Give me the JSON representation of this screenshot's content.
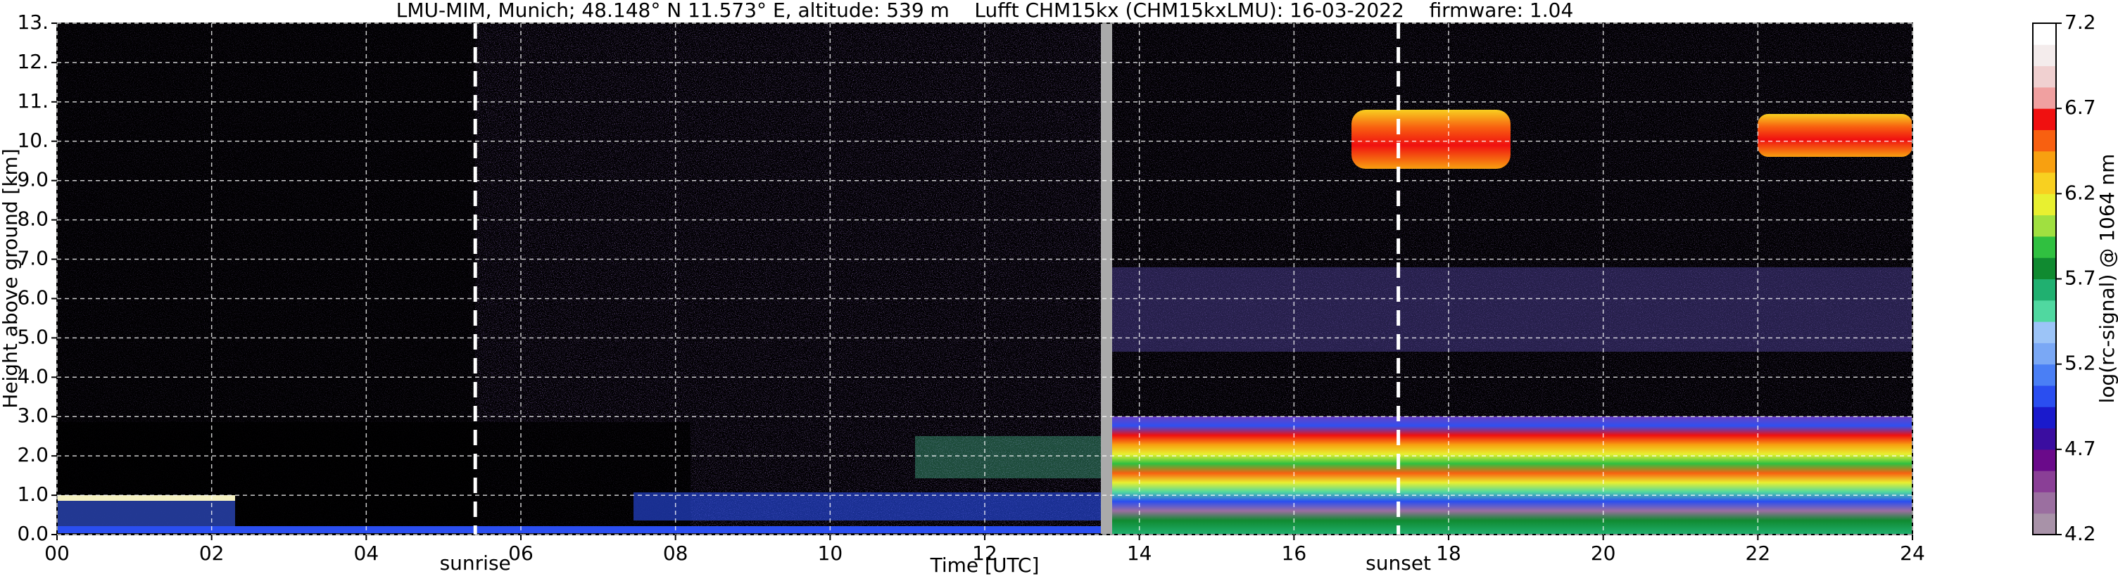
{
  "chart_data": {
    "type": "heatmap",
    "title": "LMU-MIM, Munich; 48.148° N 11.573° E, altitude: 539 m    Lufft CHM15kx (CHM15kxLMU): 16-03-2022    firmware: 1.04",
    "x_label": "Time [UTC]",
    "y_label": "Height above ground [km]",
    "xlim": [
      0,
      24
    ],
    "xticks": [
      {
        "value": 0,
        "label": "00"
      },
      {
        "value": 2,
        "label": "02"
      },
      {
        "value": 4,
        "label": "04"
      },
      {
        "value": 6,
        "label": "06"
      },
      {
        "value": 8,
        "label": "08"
      },
      10,
      12,
      14,
      16,
      18,
      20,
      22,
      24
    ],
    "ylim": [
      0,
      13
    ],
    "yticks": [
      {
        "value": 0,
        "label": "0.0"
      },
      {
        "value": 1,
        "label": "1.0"
      },
      {
        "value": 2,
        "label": "2.0"
      },
      {
        "value": 3,
        "label": "3.0"
      },
      {
        "value": 4,
        "label": "4.0"
      },
      {
        "value": 5,
        "label": "5.0"
      },
      {
        "value": 6,
        "label": "6.0"
      },
      {
        "value": 7,
        "label": "7.0"
      },
      {
        "value": 8,
        "label": "8.0"
      },
      {
        "value": 9,
        "label": "9.0"
      },
      {
        "value": 10,
        "label": "10."
      },
      {
        "value": 11,
        "label": "11."
      },
      {
        "value": 12,
        "label": "12."
      },
      {
        "value": 13,
        "label": "13."
      }
    ],
    "grid": true,
    "annotations": [
      {
        "label": "sunrise",
        "x": 5.41
      },
      {
        "label": "sunset",
        "x": 17.35
      }
    ],
    "colorbar": {
      "label": "log(rc-signal) @ 1064 nm",
      "lim": [
        4.2,
        7.2
      ],
      "ticks": [
        4.2,
        4.7,
        5.2,
        5.7,
        6.2,
        6.7,
        7.2
      ],
      "colormap": [
        "#a892a8",
        "#9b6fa0",
        "#8a3f96",
        "#6a0a8a",
        "#3a0da0",
        "#1a1acc",
        "#2a4ef0",
        "#4a7ff5",
        "#7aa8f5",
        "#9cc4f7",
        "#50d8a0",
        "#20b070",
        "#108a30",
        "#30c040",
        "#a0e040",
        "#e8f030",
        "#f8d020",
        "#f8a010",
        "#f86010",
        "#f01010",
        "#f0a0a0",
        "#f0d0d0",
        "#f4ecec",
        "#ffffff"
      ]
    }
  }
}
